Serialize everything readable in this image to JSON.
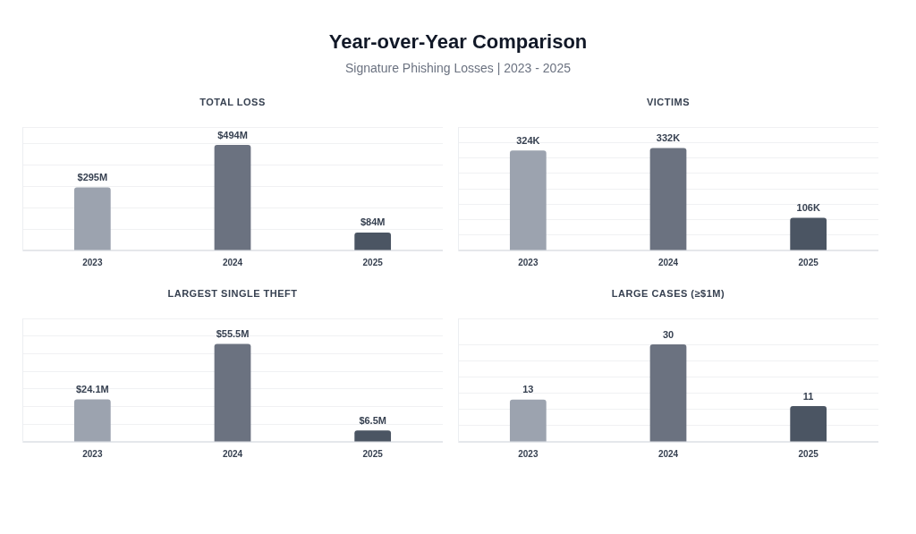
{
  "chart_data": [
    {
      "type": "other",
      "title": "Year-over-Year Comparison",
      "subtitle": "Signature Phishing Losses | 2023 - 2025"
    },
    {
      "type": "bar",
      "title": "TOTAL LOSS",
      "categories": [
        "2023",
        "2024",
        "2025"
      ],
      "values": [
        295,
        494,
        84
      ],
      "colors": [
        "#9ca3af",
        "#6b7280",
        "#4b5563"
      ],
      "value_labels": [
        "$295M",
        "$494M",
        "$84M"
      ],
      "ylim": [
        0,
        578
      ],
      "yticks": [
        {
          "value": 0,
          "label": null
        },
        {
          "value": 100,
          "label": null
        },
        {
          "value": 200,
          "label": null
        },
        {
          "value": 300,
          "label": null
        },
        {
          "value": 400,
          "label": null
        },
        {
          "value": 500,
          "label": null
        },
        {
          "value": 578,
          "label": null
        }
      ],
      "grid": "y",
      "tick_labels": "x"
    },
    {
      "type": "bar",
      "title": "VICTIMS",
      "categories": [
        "2023",
        "2024",
        "2025"
      ],
      "values": [
        324000,
        332000,
        106000
      ],
      "colors": [
        "#9ca3af",
        "#6b7280",
        "#4b5563"
      ],
      "value_labels": [
        "324K",
        "332K",
        "106K"
      ],
      "ylim": [
        0,
        400000
      ],
      "yticks": [
        {
          "value": 0,
          "label": null
        },
        {
          "value": 50000,
          "label": null
        },
        {
          "value": 100000,
          "label": null
        },
        {
          "value": 150000,
          "label": null
        },
        {
          "value": 200000,
          "label": null
        },
        {
          "value": 250000,
          "label": null
        },
        {
          "value": 300000,
          "label": null
        },
        {
          "value": 350000,
          "label": null
        },
        {
          "value": 400000,
          "label": null
        }
      ],
      "grid": "y",
      "tick_labels": "x"
    },
    {
      "type": "bar",
      "title": "LARGEST SINGLE THEFT",
      "categories": [
        "2023",
        "2024",
        "2025"
      ],
      "values": [
        24.1,
        55.5,
        6.5
      ],
      "colors": [
        "#9ca3af",
        "#6b7280",
        "#4b5563"
      ],
      "value_labels": [
        "$24.1M",
        "$55.5M",
        "$6.5M"
      ],
      "ylim": [
        0,
        70
      ],
      "yticks": [
        {
          "value": 0,
          "label": null
        },
        {
          "value": 10,
          "label": null
        },
        {
          "value": 20,
          "label": null
        },
        {
          "value": 30,
          "label": null
        },
        {
          "value": 40,
          "label": null
        },
        {
          "value": 50,
          "label": null
        },
        {
          "value": 60,
          "label": null
        },
        {
          "value": 70,
          "label": null
        }
      ],
      "grid": "y",
      "tick_labels": "x"
    },
    {
      "type": "bar",
      "title": "LARGE CASES (≥$1M)",
      "categories": [
        "2023",
        "2024",
        "2025"
      ],
      "values": [
        13,
        30,
        11
      ],
      "colors": [
        "#9ca3af",
        "#6b7280",
        "#4b5563"
      ],
      "data_labels": true,
      "ylim": [
        0,
        38
      ],
      "yticks": [
        {
          "value": 0,
          "label": null
        },
        {
          "value": 5,
          "label": null
        },
        {
          "value": 10,
          "label": null
        },
        {
          "value": 15,
          "label": null
        },
        {
          "value": 20,
          "label": null
        },
        {
          "value": 25,
          "label": null
        },
        {
          "value": 30,
          "label": null
        },
        {
          "value": 38,
          "label": null
        }
      ],
      "grid": "y",
      "tick_labels": "x"
    }
  ]
}
